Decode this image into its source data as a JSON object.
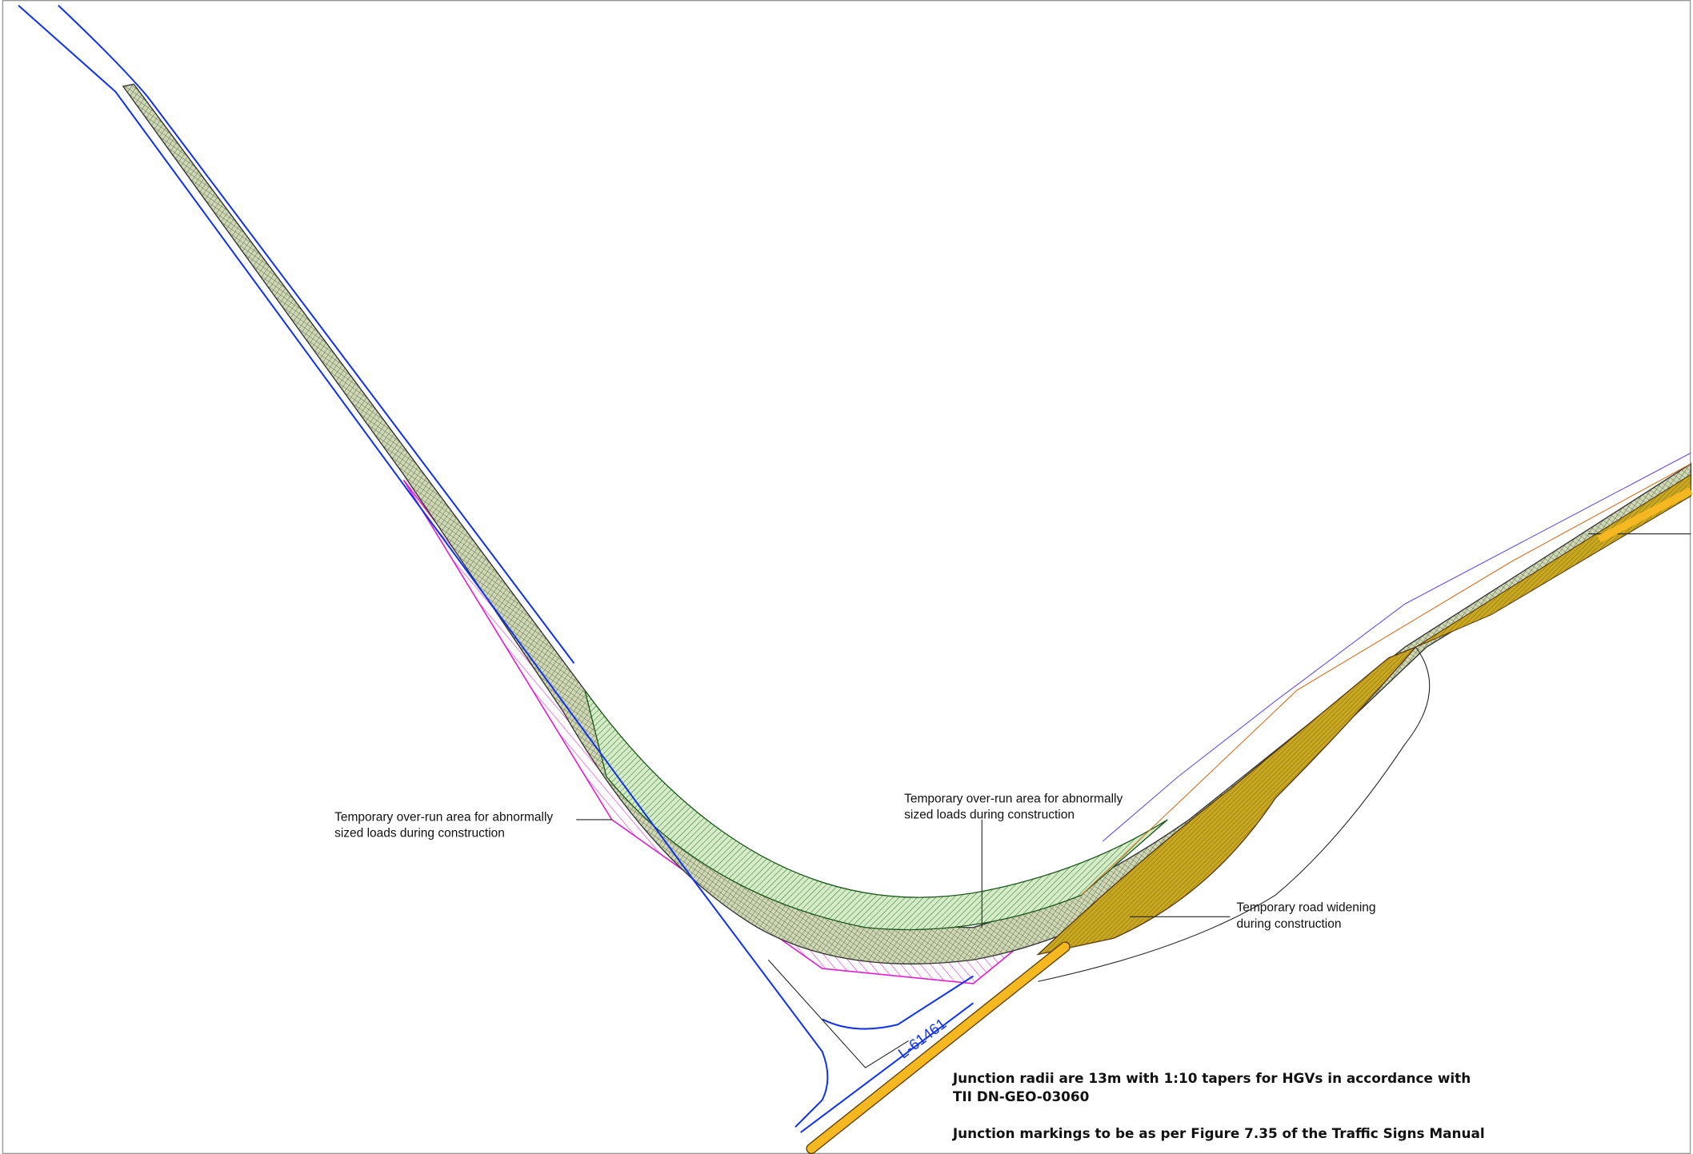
{
  "annotations": [
    {
      "lines": [
        "Temporary over-run area for abnormally",
        "sized loads during construction"
      ]
    },
    {
      "lines": [
        "Temporary over-run area for abnormally",
        "sized loads during construction"
      ]
    },
    {
      "lines": [
        "Temporary road widening",
        "during construction"
      ]
    }
  ],
  "road_label": "L-61461",
  "notes": [
    "Junction radii are 13m with 1:10 tapers for HGVs in accordance with",
    "TII DN-GEO-03060",
    "Junction markings to be as per Figure 7.35 of the Traffic Signs Manual"
  ]
}
